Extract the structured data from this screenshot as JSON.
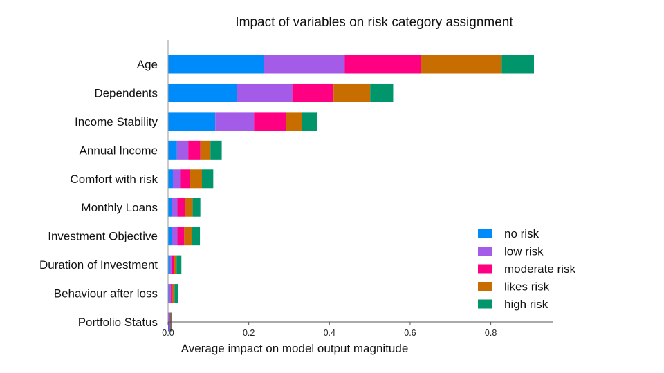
{
  "chart_data": {
    "type": "bar",
    "orientation": "horizontal",
    "stacked": true,
    "title": "Impact of variables on risk category assignment",
    "xlabel": "Average impact on model output magnitude",
    "ylabel": "",
    "xlim": [
      0,
      0.955
    ],
    "xticks": [
      "0.0",
      "0.2",
      "0.4",
      "0.6",
      "0.8"
    ],
    "legend_position": "lower-right",
    "grid": false,
    "categories": [
      "Age",
      "Dependents",
      "Income Stability",
      "Annual Income",
      "Comfort with risk",
      "Monthly Loans",
      "Investment Objective",
      "Duration of Investment",
      "Behaviour after loss",
      "Portfolio Status"
    ],
    "series": [
      {
        "name": "no risk",
        "color": "#008bfb",
        "values": [
          0.237,
          0.171,
          0.117,
          0.022,
          0.012,
          0.01,
          0.01,
          0.005,
          0.003,
          0.002
        ]
      },
      {
        "name": "low risk",
        "color": "#a35be8",
        "values": [
          0.201,
          0.137,
          0.096,
          0.028,
          0.018,
          0.013,
          0.013,
          0.004,
          0.004,
          0.002
        ]
      },
      {
        "name": "moderate risk",
        "color": "#ff0083",
        "values": [
          0.189,
          0.102,
          0.079,
          0.03,
          0.024,
          0.019,
          0.017,
          0.006,
          0.004,
          0.002
        ]
      },
      {
        "name": "likes risk",
        "color": "#c86e00",
        "values": [
          0.2,
          0.091,
          0.04,
          0.025,
          0.03,
          0.019,
          0.019,
          0.006,
          0.005,
          0.001
        ]
      },
      {
        "name": "high risk",
        "color": "#00956b",
        "values": [
          0.08,
          0.057,
          0.038,
          0.028,
          0.028,
          0.019,
          0.02,
          0.012,
          0.009,
          0.002
        ]
      }
    ]
  }
}
